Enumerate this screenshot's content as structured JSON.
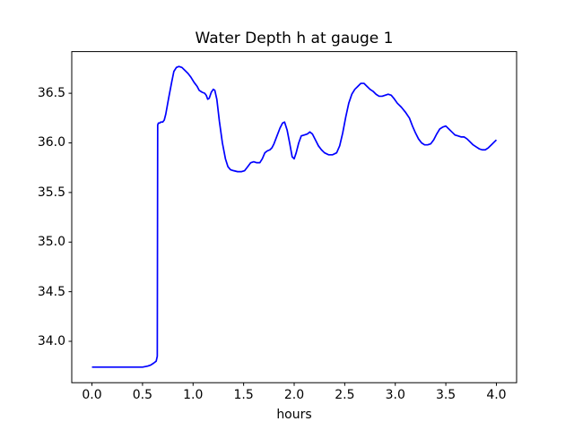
{
  "figure": {
    "background": "#ffffff"
  },
  "chart_data": {
    "type": "line",
    "title": "Water Depth h at gauge 1",
    "xlabel": "hours",
    "ylabel": "",
    "xlim": [
      -0.2,
      4.2
    ],
    "ylim": [
      33.583,
      36.92
    ],
    "xticks": [
      0.0,
      0.5,
      1.0,
      1.5,
      2.0,
      2.5,
      3.0,
      3.5,
      4.0
    ],
    "xtick_labels": [
      "0.0",
      "0.5",
      "1.0",
      "1.5",
      "2.0",
      "2.5",
      "3.0",
      "3.5",
      "4.0"
    ],
    "yticks": [
      34.0,
      34.5,
      35.0,
      35.5,
      36.0,
      36.5
    ],
    "ytick_labels": [
      "34.0",
      "34.5",
      "35.0",
      "35.5",
      "36.0",
      "36.5"
    ],
    "grid": false,
    "series": [
      {
        "name": "water-depth-h-gauge-1",
        "color": "#0000ff",
        "line_width": 1.7,
        "points": [
          [
            0.0,
            33.74
          ],
          [
            0.2,
            33.74
          ],
          [
            0.4,
            33.74
          ],
          [
            0.5,
            33.74
          ],
          [
            0.55,
            33.75
          ],
          [
            0.58,
            33.76
          ],
          [
            0.61,
            33.78
          ],
          [
            0.635,
            33.8
          ],
          [
            0.646,
            33.85
          ],
          [
            0.65,
            36.18
          ],
          [
            0.657,
            36.2
          ],
          [
            0.67,
            36.2
          ],
          [
            0.68,
            36.21
          ],
          [
            0.7,
            36.21
          ],
          [
            0.715,
            36.23
          ],
          [
            0.73,
            36.29
          ],
          [
            0.76,
            36.46
          ],
          [
            0.79,
            36.62
          ],
          [
            0.81,
            36.72
          ],
          [
            0.835,
            36.76
          ],
          [
            0.86,
            36.77
          ],
          [
            0.89,
            36.76
          ],
          [
            0.92,
            36.73
          ],
          [
            0.95,
            36.7
          ],
          [
            0.98,
            36.66
          ],
          [
            1.01,
            36.61
          ],
          [
            1.04,
            36.57
          ],
          [
            1.06,
            36.53
          ],
          [
            1.09,
            36.51
          ],
          [
            1.115,
            36.5
          ],
          [
            1.13,
            36.48
          ],
          [
            1.145,
            36.44
          ],
          [
            1.16,
            36.45
          ],
          [
            1.18,
            36.51
          ],
          [
            1.2,
            36.54
          ],
          [
            1.215,
            36.53
          ],
          [
            1.235,
            36.44
          ],
          [
            1.26,
            36.22
          ],
          [
            1.29,
            36.0
          ],
          [
            1.32,
            35.84
          ],
          [
            1.345,
            35.76
          ],
          [
            1.37,
            35.73
          ],
          [
            1.4,
            35.72
          ],
          [
            1.44,
            35.71
          ],
          [
            1.48,
            35.71
          ],
          [
            1.51,
            35.72
          ],
          [
            1.54,
            35.76
          ],
          [
            1.57,
            35.8
          ],
          [
            1.6,
            35.81
          ],
          [
            1.63,
            35.8
          ],
          [
            1.66,
            35.8
          ],
          [
            1.685,
            35.84
          ],
          [
            1.71,
            35.9
          ],
          [
            1.735,
            35.92
          ],
          [
            1.76,
            35.93
          ],
          [
            1.78,
            35.95
          ],
          [
            1.8,
            35.99
          ],
          [
            1.83,
            36.07
          ],
          [
            1.86,
            36.15
          ],
          [
            1.885,
            36.2
          ],
          [
            1.905,
            36.21
          ],
          [
            1.93,
            36.13
          ],
          [
            1.955,
            36.0
          ],
          [
            1.98,
            35.86
          ],
          [
            2.0,
            35.84
          ],
          [
            2.02,
            35.9
          ],
          [
            2.045,
            36.0
          ],
          [
            2.07,
            36.07
          ],
          [
            2.1,
            36.08
          ],
          [
            2.13,
            36.09
          ],
          [
            2.155,
            36.11
          ],
          [
            2.18,
            36.09
          ],
          [
            2.21,
            36.03
          ],
          [
            2.24,
            35.97
          ],
          [
            2.27,
            35.93
          ],
          [
            2.3,
            35.9
          ],
          [
            2.34,
            35.88
          ],
          [
            2.38,
            35.88
          ],
          [
            2.42,
            35.9
          ],
          [
            2.45,
            35.97
          ],
          [
            2.48,
            36.1
          ],
          [
            2.51,
            36.26
          ],
          [
            2.54,
            36.4
          ],
          [
            2.57,
            36.49
          ],
          [
            2.6,
            36.54
          ],
          [
            2.63,
            36.57
          ],
          [
            2.66,
            36.6
          ],
          [
            2.69,
            36.6
          ],
          [
            2.72,
            36.57
          ],
          [
            2.75,
            36.54
          ],
          [
            2.78,
            36.52
          ],
          [
            2.81,
            36.49
          ],
          [
            2.84,
            36.47
          ],
          [
            2.87,
            36.47
          ],
          [
            2.9,
            36.48
          ],
          [
            2.93,
            36.49
          ],
          [
            2.96,
            36.48
          ],
          [
            2.985,
            36.45
          ],
          [
            3.02,
            36.4
          ],
          [
            3.06,
            36.36
          ],
          [
            3.1,
            36.31
          ],
          [
            3.14,
            36.25
          ],
          [
            3.17,
            36.17
          ],
          [
            3.2,
            36.1
          ],
          [
            3.23,
            36.04
          ],
          [
            3.26,
            36.0
          ],
          [
            3.29,
            35.98
          ],
          [
            3.32,
            35.98
          ],
          [
            3.35,
            35.99
          ],
          [
            3.38,
            36.03
          ],
          [
            3.41,
            36.09
          ],
          [
            3.44,
            36.14
          ],
          [
            3.47,
            36.16
          ],
          [
            3.5,
            36.17
          ],
          [
            3.53,
            36.14
          ],
          [
            3.56,
            36.11
          ],
          [
            3.59,
            36.08
          ],
          [
            3.62,
            36.07
          ],
          [
            3.65,
            36.06
          ],
          [
            3.68,
            36.06
          ],
          [
            3.71,
            36.04
          ],
          [
            3.74,
            36.01
          ],
          [
            3.77,
            35.98
          ],
          [
            3.8,
            35.96
          ],
          [
            3.83,
            35.94
          ],
          [
            3.86,
            35.93
          ],
          [
            3.89,
            35.93
          ],
          [
            3.92,
            35.95
          ],
          [
            3.95,
            35.98
          ],
          [
            3.98,
            36.01
          ],
          [
            4.0,
            36.03
          ]
        ]
      }
    ]
  }
}
